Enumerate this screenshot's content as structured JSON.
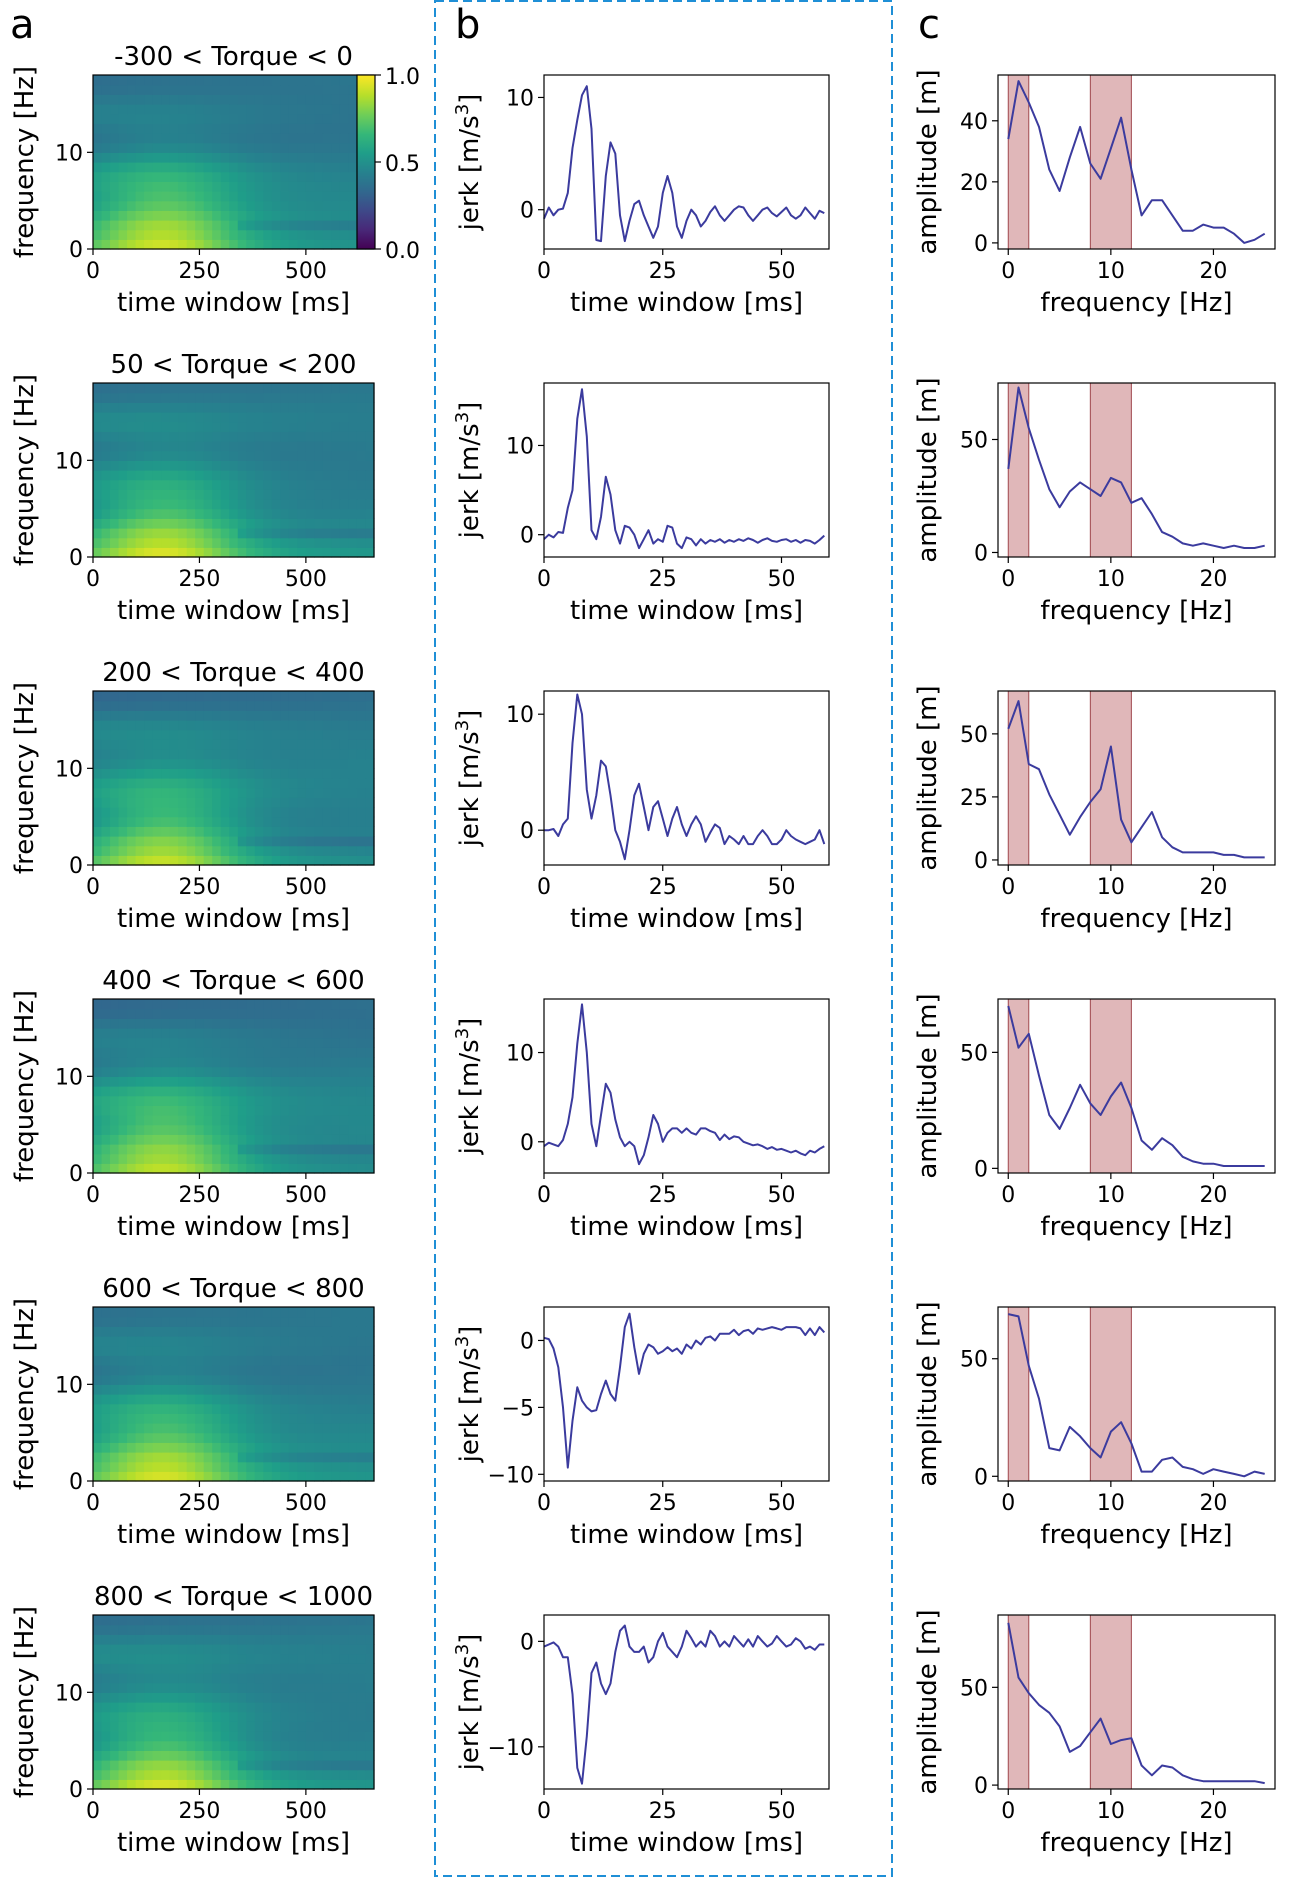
{
  "panel_letters": {
    "a": "a",
    "b": "b",
    "c": "c"
  },
  "colors": {
    "line": "#3b3b9e",
    "band": "#c77b7f",
    "dashed_box": "#1f8fd6",
    "viridis": [
      "#440154",
      "#482878",
      "#3e4989",
      "#31688e",
      "#26828e",
      "#1f9e89",
      "#35b779",
      "#6ece58",
      "#b5de2b",
      "#fde725"
    ]
  },
  "chart_data": [
    {
      "type": "heatmap",
      "panel": "a",
      "titles": [
        "-300 < Torque < 0",
        "50 < Torque < 200",
        "200 < Torque < 400",
        "400 < Torque < 600",
        "600 < Torque < 800",
        "800 < Torque < 1000"
      ],
      "xlabel": "time window [ms]",
      "ylabel": "frequency [Hz]",
      "xlim": [
        0,
        660
      ],
      "ylim": [
        0,
        18
      ],
      "xticks": [
        0,
        250,
        500
      ],
      "yticks": [
        0,
        10
      ],
      "colorbar": {
        "vmin": 0.0,
        "vmax": 1.0,
        "ticks": [
          "0.0",
          "0.5",
          "1.0"
        ],
        "colormap": "viridis"
      }
    },
    {
      "type": "line",
      "panel": "b",
      "xlabel": "time window [ms]",
      "ylabel": "jerk [m/s³]",
      "xlim": [
        0,
        60
      ],
      "xticks": [
        0,
        25,
        50
      ],
      "x": [
        0,
        1,
        2,
        3,
        4,
        5,
        6,
        7,
        8,
        9,
        10,
        11,
        12,
        13,
        14,
        15,
        16,
        17,
        18,
        19,
        20,
        21,
        22,
        23,
        24,
        25,
        26,
        27,
        28,
        29,
        30,
        31,
        32,
        33,
        34,
        35,
        36,
        37,
        38,
        39,
        40,
        41,
        42,
        43,
        44,
        45,
        46,
        47,
        48,
        49,
        50,
        51,
        52,
        53,
        54,
        55,
        56,
        57,
        58,
        59
      ],
      "plots": [
        {
          "ylim": [
            -3.5,
            12
          ],
          "yticks": [
            0,
            10
          ],
          "values": [
            -0.8,
            0.2,
            -0.5,
            0,
            0.1,
            1.5,
            5.5,
            8,
            10.2,
            11,
            7.2,
            -2.7,
            -2.8,
            3,
            6,
            5,
            -0.5,
            -2.8,
            -1,
            0.5,
            0.8,
            -0.5,
            -1.5,
            -2.5,
            -1.5,
            1.5,
            3,
            1.5,
            -1.5,
            -2.5,
            -1,
            0,
            -0.5,
            -1.5,
            -1,
            -0.2,
            0.3,
            -0.5,
            -1,
            -0.5,
            0,
            0.3,
            0.2,
            -0.5,
            -1,
            -0.5,
            0,
            0.2,
            -0.3,
            -0.6,
            -0.2,
            0.2,
            -0.5,
            -0.8,
            -0.5,
            0.2,
            -0.3,
            -0.8,
            -0.1,
            -0.3
          ]
        },
        {
          "ylim": [
            -2.5,
            17
          ],
          "yticks": [
            0,
            10
          ],
          "values": [
            -0.5,
            0,
            -0.3,
            0.3,
            0.2,
            3,
            5,
            13,
            16.3,
            11,
            0.5,
            -0.5,
            2,
            6.5,
            4.5,
            0.5,
            -1,
            1,
            0.8,
            0,
            -1.5,
            -0.5,
            0.5,
            -1,
            -0.5,
            -0.8,
            1,
            0.8,
            -1,
            -1.5,
            -0.3,
            -0.5,
            -1.2,
            -0.5,
            -1,
            -0.6,
            -0.8,
            -0.5,
            -0.9,
            -0.6,
            -0.8,
            -0.5,
            -0.7,
            -0.4,
            -0.6,
            -0.9,
            -0.6,
            -0.4,
            -0.7,
            -0.8,
            -0.6,
            -0.5,
            -0.8,
            -0.6,
            -0.9,
            -0.6,
            -0.7,
            -1,
            -0.6,
            -0.1
          ]
        },
        {
          "ylim": [
            -3,
            12
          ],
          "yticks": [
            0,
            10
          ],
          "values": [
            0,
            0,
            0.1,
            -0.5,
            0.5,
            1,
            7.5,
            11.7,
            10,
            3.5,
            1,
            3,
            6,
            5.5,
            3,
            0,
            -1,
            -2.5,
            0,
            3,
            4,
            2,
            0,
            2,
            2.5,
            1,
            -0.5,
            1,
            2,
            0.5,
            -0.5,
            0.5,
            1.2,
            0.5,
            -1,
            -0.2,
            0.5,
            0.2,
            -1.2,
            -0.5,
            -0.8,
            -1.2,
            -0.5,
            -1.2,
            -1.2,
            -0.5,
            0,
            -0.5,
            -1.2,
            -1.2,
            -0.8,
            0,
            -0.5,
            -0.8,
            -1,
            -1.2,
            -1,
            -0.8,
            0,
            -1.2
          ]
        },
        {
          "ylim": [
            -3.5,
            16
          ],
          "yticks": [
            0,
            10
          ],
          "values": [
            -0.5,
            -0.1,
            -0.3,
            -0.5,
            0.2,
            2,
            5,
            11,
            15.4,
            10,
            2,
            -0.5,
            3,
            6.5,
            5.5,
            2.5,
            0.5,
            -0.5,
            0,
            -0.5,
            -2.5,
            -1.5,
            0.5,
            3,
            2,
            0,
            1,
            1.5,
            1.5,
            1,
            1.5,
            1,
            0.8,
            1.5,
            1.5,
            1.2,
            1,
            0.2,
            0.8,
            0.3,
            0.6,
            0.5,
            0,
            -0.2,
            -0.4,
            -0.3,
            -0.5,
            -0.8,
            -0.6,
            -0.9,
            -0.8,
            -1,
            -1.2,
            -1,
            -1.3,
            -1.5,
            -1,
            -1.2,
            -0.8,
            -0.5
          ]
        },
        {
          "ylim": [
            -10.5,
            2.5
          ],
          "yticks": [
            -10,
            -5,
            0
          ],
          "values": [
            0.2,
            0.1,
            -0.6,
            -2,
            -5,
            -9.5,
            -6,
            -3.5,
            -4.5,
            -5,
            -5.3,
            -5.2,
            -4,
            -3,
            -4,
            -4.5,
            -2,
            1,
            2,
            -0.5,
            -2.5,
            -1,
            -0.3,
            -0.5,
            -1,
            -0.8,
            -0.5,
            -0.8,
            -0.6,
            -1,
            -0.3,
            -0.6,
            0,
            -0.3,
            0.2,
            0.3,
            0,
            0.5,
            0.5,
            0.5,
            0.8,
            0.4,
            0.7,
            0.8,
            0.5,
            0.9,
            0.8,
            0.9,
            1,
            0.9,
            0.8,
            1,
            1,
            1,
            0.9,
            0.4,
            0.9,
            0.4,
            1,
            0.6
          ]
        },
        {
          "ylim": [
            -14,
            2.5
          ],
          "yticks": [
            -10,
            0
          ],
          "values": [
            -0.5,
            -0.3,
            -0.1,
            -0.5,
            -1.5,
            -1.5,
            -5,
            -12,
            -13.5,
            -9,
            -3,
            -2,
            -4,
            -5,
            -4,
            -1,
            1,
            1.5,
            -0.5,
            -1,
            -1,
            -0.5,
            -2,
            -1.5,
            0,
            0.8,
            -0.5,
            -1,
            -1.5,
            -0.5,
            1,
            0.3,
            -0.5,
            0,
            -0.5,
            1,
            0.5,
            -0.5,
            0,
            -0.5,
            0.5,
            0,
            -0.5,
            0.2,
            -0.5,
            0.5,
            0,
            -0.5,
            -0.2,
            0.5,
            0,
            -0.5,
            -0.3,
            0.3,
            0,
            -0.7,
            -0.5,
            -0.8,
            -0.3,
            -0.3
          ]
        }
      ]
    },
    {
      "type": "line",
      "panel": "c",
      "xlabel": "frequency [Hz]",
      "ylabel": "amplitude [m]",
      "xlim": [
        -1,
        26
      ],
      "xticks": [
        0,
        10,
        20
      ],
      "shaded_bands": [
        [
          0,
          2
        ],
        [
          8,
          12
        ]
      ],
      "x": [
        0,
        1,
        2,
        3,
        4,
        5,
        6,
        7,
        8,
        9,
        10,
        11,
        12,
        13,
        14,
        15,
        16,
        17,
        18,
        19,
        20,
        21,
        22,
        23,
        24,
        25
      ],
      "plots": [
        {
          "ylim": [
            -2,
            55
          ],
          "yticks": [
            0,
            20,
            40
          ],
          "values": [
            34,
            53,
            46,
            38,
            24,
            17,
            28,
            38,
            26,
            21,
            31,
            41,
            24,
            9,
            14,
            14,
            9,
            4,
            4,
            6,
            5,
            5,
            3,
            0,
            1,
            3
          ]
        },
        {
          "ylim": [
            -2,
            75
          ],
          "yticks": [
            0,
            50
          ],
          "values": [
            37,
            73,
            55,
            41,
            28,
            20,
            27,
            31,
            28,
            25,
            33,
            31,
            22,
            24,
            17,
            9,
            7,
            4,
            3,
            4,
            3,
            2,
            3,
            2,
            2,
            3
          ]
        },
        {
          "ylim": [
            -2,
            67
          ],
          "yticks": [
            0,
            25,
            50
          ],
          "values": [
            52,
            63,
            38,
            36,
            26,
            18,
            10,
            17,
            23,
            28,
            45,
            16,
            7,
            13,
            19,
            9,
            5,
            3,
            3,
            3,
            3,
            2,
            2,
            1,
            1,
            1
          ]
        },
        {
          "ylim": [
            -2,
            73
          ],
          "yticks": [
            0,
            50
          ],
          "values": [
            70,
            52,
            58,
            40,
            23,
            17,
            26,
            36,
            28,
            23,
            31,
            37,
            26,
            12,
            8,
            13,
            10,
            5,
            3,
            2,
            2,
            1,
            1,
            1,
            1,
            1
          ]
        },
        {
          "ylim": [
            -2,
            72
          ],
          "yticks": [
            0,
            50
          ],
          "values": [
            69,
            68,
            47,
            33,
            12,
            11,
            21,
            17,
            12,
            8,
            19,
            23,
            14,
            2,
            2,
            7,
            8,
            4,
            3,
            1,
            3,
            2,
            1,
            0,
            2,
            1
          ]
        },
        {
          "ylim": [
            -2,
            87
          ],
          "yticks": [
            0,
            50
          ],
          "values": [
            83,
            55,
            47,
            41,
            37,
            30,
            17,
            20,
            27,
            34,
            21,
            23,
            24,
            10,
            5,
            10,
            9,
            5,
            3,
            2,
            2,
            2,
            2,
            2,
            2,
            1
          ]
        }
      ]
    }
  ]
}
